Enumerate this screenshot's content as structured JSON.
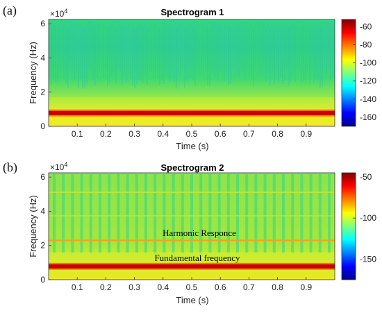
{
  "chart_data": [
    {
      "type": "heatmap",
      "panel_label": "(a)",
      "title": "Spectrogram 1",
      "xlabel": "Time (s)",
      "ylabel": "Frequency (Hz)",
      "y_exponent": "×10",
      "y_exponent_power": "4",
      "xlim": [
        0,
        1.0
      ],
      "ylim": [
        0,
        6.25
      ],
      "x_ticks": [
        "0.1",
        "0.2",
        "0.3",
        "0.4",
        "0.5",
        "0.6",
        "0.7",
        "0.8",
        "0.9"
      ],
      "y_ticks": [
        "0",
        "2",
        "4",
        "6"
      ],
      "colorbar": {
        "ticks": [
          "-60",
          "-80",
          "-100",
          "-120",
          "-140",
          "-160"
        ],
        "range": [
          -170,
          -52
        ]
      },
      "bands": [
        {
          "freq": 0.78,
          "level_dB": -55,
          "label": ""
        }
      ],
      "annotations": []
    },
    {
      "type": "heatmap",
      "panel_label": "(b)",
      "title": "Spectrogram 2",
      "xlabel": "Time (s)",
      "ylabel": "Frequency (Hz)",
      "y_exponent": "×10",
      "y_exponent_power": "4",
      "xlim": [
        0,
        1.0
      ],
      "ylim": [
        0,
        6.25
      ],
      "x_ticks": [
        "0.1",
        "0.2",
        "0.3",
        "0.4",
        "0.5",
        "0.6",
        "0.7",
        "0.8",
        "0.9"
      ],
      "y_ticks": [
        "0",
        "2",
        "4",
        "6"
      ],
      "colorbar": {
        "ticks": [
          "-50",
          "-100",
          "-150"
        ],
        "range": [
          -175,
          -45
        ]
      },
      "bands": [
        {
          "freq": 0.78,
          "level_dB": -48,
          "label": ""
        },
        {
          "freq": 2.3,
          "level_dB": -80,
          "label": ""
        }
      ],
      "annotations": [
        "Harmonic Responce",
        "Fundamental frequency"
      ]
    }
  ]
}
